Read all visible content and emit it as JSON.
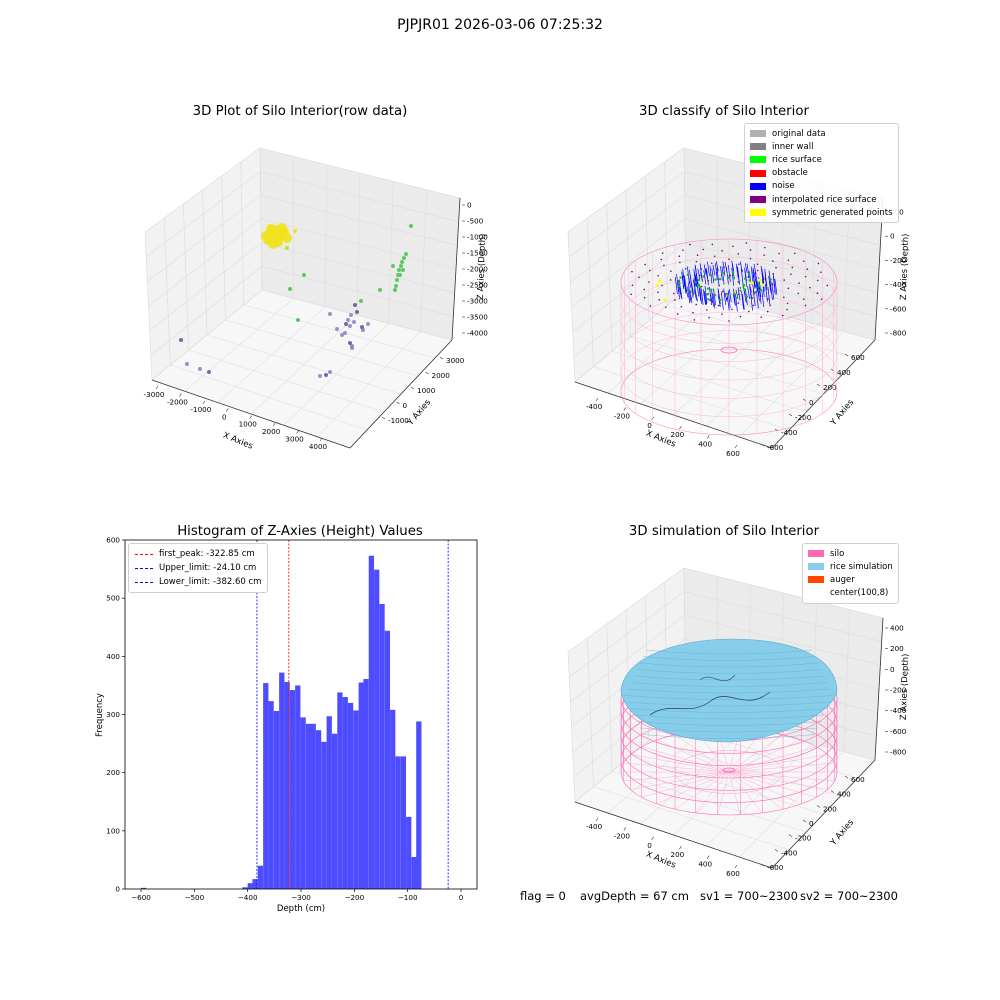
{
  "figure": {
    "suptitle": "PJPJR01 2026-03-06 07:25:32"
  },
  "panels": {
    "raw": {
      "title": "3D Plot of Silo Interior(row data)",
      "xlabel": "X Axies",
      "ylabel": "Y Axies",
      "zlabel": "Z Axies (Depth)",
      "xticks": [
        "-3000",
        "-2000",
        "-1000",
        "0",
        "1000",
        "2000",
        "3000",
        "4000"
      ],
      "yticks": [
        "-1000",
        "0",
        "1000",
        "2000",
        "3000"
      ],
      "zticks": [
        "0",
        "-500",
        "-1000",
        "-1500",
        "-2000",
        "-2500",
        "-3000",
        "-3500",
        "-4000"
      ]
    },
    "classify": {
      "title": "3D classify of Silo Interior",
      "xlabel": "X Axies",
      "ylabel": "Y Axies",
      "zlabel": "Z Axies (Depth)",
      "xticks": [
        "-400",
        "-200",
        "0",
        "200",
        "400",
        "600"
      ],
      "yticks": [
        "-600",
        "-400",
        "-200",
        "0",
        "200",
        "400",
        "600"
      ],
      "zticks": [
        "200",
        "0",
        "-200",
        "-400",
        "-600",
        "-800"
      ],
      "ztick_partial": "0",
      "legend": [
        {
          "label": "original data",
          "color": "#b0b0b0"
        },
        {
          "label": "inner wall",
          "color": "#808080"
        },
        {
          "label": "rice surface",
          "color": "#00ff00"
        },
        {
          "label": "obstacle",
          "color": "#ff0000"
        },
        {
          "label": "noise",
          "color": "#0000ff"
        },
        {
          "label": "interpolated rice surface",
          "color": "#800080"
        },
        {
          "label": "symmetric generated points",
          "color": "#ffff00"
        }
      ]
    },
    "histogram": {
      "title": "Histogram of Z-Axies (Height) Values",
      "xlabel": "Depth (cm)",
      "ylabel": "Frequency",
      "xticks": [
        "-600",
        "-500",
        "-400",
        "-300",
        "-200",
        "-100",
        "0"
      ],
      "yticks": [
        "0",
        "100",
        "200",
        "300",
        "400",
        "500",
        "600"
      ],
      "legend": [
        {
          "label": "first_peak: -322.85 cm",
          "color": "#ff0000"
        },
        {
          "label": "Upper_limit: -24.10 cm",
          "color": "#0000ff"
        },
        {
          "label": "Lower_limit: -382.60 cm",
          "color": "#0000ff"
        }
      ]
    },
    "simulation": {
      "title": "3D simulation of Silo Interior",
      "xlabel": "X Axies",
      "ylabel": "Y Axies",
      "zlabel": "Z Axies (Depth)",
      "xticks": [
        "-400",
        "-200",
        "0",
        "200",
        "400",
        "600"
      ],
      "yticks": [
        "-600",
        "-400",
        "-200",
        "0",
        "200",
        "400",
        "600"
      ],
      "zticks": [
        "400",
        "200",
        "0",
        "-200",
        "-400",
        "-600",
        "-800"
      ],
      "legend": [
        {
          "label": "silo",
          "color": "#ff69b4"
        },
        {
          "label": "rice simulation",
          "color": "#87ceeb"
        },
        {
          "label": "auger",
          "color": "#ff4500"
        },
        {
          "label": "center(100,8)",
          "color": "#ffffff"
        }
      ]
    }
  },
  "status": {
    "flag": "flag = 0",
    "avg_depth": "avgDepth = 67 cm",
    "sv1": "sv1 = 700~2300",
    "sv2": "sv2 = 700~2300"
  },
  "chart_data": {
    "type": "bar",
    "title": "Histogram of Z-Axies (Height) Values",
    "xlabel": "Depth (cm)",
    "ylabel": "Frequency",
    "xlim": [
      -630,
      30
    ],
    "ylim": [
      0,
      600
    ],
    "bin_width": 9.9,
    "bins": [
      [
        -600,
        2
      ],
      [
        -410,
        3
      ],
      [
        -400,
        10
      ],
      [
        -391,
        17
      ],
      [
        -381,
        40
      ],
      [
        -371,
        354
      ],
      [
        -361,
        323
      ],
      [
        -351,
        306
      ],
      [
        -341,
        372
      ],
      [
        -331,
        356
      ],
      [
        -321,
        342
      ],
      [
        -311,
        350
      ],
      [
        -301,
        295
      ],
      [
        -291,
        284
      ],
      [
        -282,
        284
      ],
      [
        -272,
        273
      ],
      [
        -262,
        253
      ],
      [
        -252,
        297
      ],
      [
        -242,
        267
      ],
      [
        -232,
        338
      ],
      [
        -222,
        330
      ],
      [
        -212,
        320
      ],
      [
        -202,
        307
      ],
      [
        -192,
        355
      ],
      [
        -183,
        361
      ],
      [
        -173,
        573
      ],
      [
        -163,
        549
      ],
      [
        -153,
        490
      ],
      [
        -143,
        444
      ],
      [
        -133,
        308
      ],
      [
        -123,
        228
      ],
      [
        -113,
        228
      ],
      [
        -103,
        124
      ],
      [
        -93,
        55
      ],
      [
        -84,
        288
      ]
    ],
    "vlines": [
      {
        "x": -322.85,
        "color": "#ff0000",
        "name": "first_peak: -322.85 cm"
      },
      {
        "x": -24.1,
        "color": "#0000ff",
        "name": "Upper_limit: -24.10 cm"
      },
      {
        "x": -382.6,
        "color": "#0000ff",
        "name": "Lower_limit: -382.60 cm"
      }
    ]
  }
}
